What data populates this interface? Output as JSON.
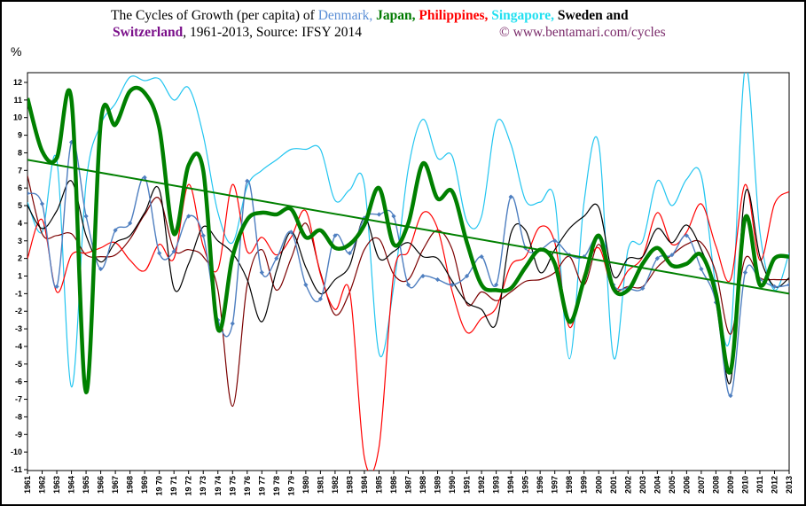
{
  "title": {
    "prefix": "The  Cycles of Growth (per capita) of ",
    "countries": [
      {
        "name": "Denmark",
        "sep": ", ",
        "color": "#5b8fd6",
        "bold": false
      },
      {
        "name": "Japan",
        "sep": ", ",
        "color": "#007a00",
        "bold": true
      },
      {
        "name": "Philippines",
        "sep": ", ",
        "color": "#ff0000",
        "bold": true
      },
      {
        "name": "Singapore",
        "sep": ", ",
        "color": "#22e0f0",
        "bold": true
      },
      {
        "name": "Sweden and",
        "sep": "",
        "color": "#000000",
        "bold": true
      }
    ],
    "line2_country": "Switzerland",
    "line2_color": "#7a0f8a",
    "line2_rest": ", 1961-2013, Source: IFSY 2014",
    "credit": "© www.bentamari.com/cycles"
  },
  "chart_data": {
    "type": "line",
    "ylabel": "%",
    "y_ticks": [
      "12",
      "11",
      "10",
      "9",
      "8",
      "7",
      "6",
      "5",
      "4",
      "3",
      "2",
      "1",
      "-1",
      "-2",
      "-3",
      "-4",
      "-5",
      "-6",
      "-7",
      "-8",
      "-9",
      "-10",
      "-11"
    ],
    "ylim": [
      -11,
      12
    ],
    "x": [
      1961,
      1962,
      1963,
      1964,
      1965,
      1966,
      1967,
      1968,
      1969,
      1970,
      1971,
      1972,
      1973,
      1974,
      1975,
      1976,
      1977,
      1978,
      1979,
      1980,
      1981,
      1982,
      1983,
      1984,
      1985,
      1986,
      1987,
      1988,
      1989,
      1990,
      1991,
      1992,
      1993,
      1994,
      1995,
      1996,
      1997,
      1998,
      1999,
      2000,
      2001,
      2002,
      2003,
      2004,
      2005,
      2006,
      2007,
      2008,
      2009,
      2010,
      2011,
      2012,
      2013
    ],
    "x_tick_labels": [
      "1961",
      "1962",
      "1963",
      "1964",
      "1965",
      "1966",
      "1967",
      "1968",
      "1969",
      "19 70",
      "19 71",
      "19 72",
      "19 73",
      "19 74",
      "19 75",
      "19 76",
      "19 77",
      "19 78",
      "19 79",
      "1980",
      "1981",
      "1982",
      "1983",
      "1984",
      "1985",
      "1986",
      "1987",
      "1988",
      "1989",
      "1990",
      "1991",
      "1992",
      "1993",
      "1994",
      "1995",
      "1996",
      "1997",
      "1998",
      "1999",
      "2000",
      "2001",
      "2002",
      "2003",
      "2004",
      "2005",
      "2006",
      "2007",
      "2008",
      "2009",
      "2010",
      "2011",
      "2012",
      "2013"
    ],
    "series": [
      {
        "name": "Denmark",
        "color": "#4f7fc0",
        "width": 1.4,
        "markers": true,
        "values": [
          5.7,
          5.1,
          -0.6,
          8.6,
          4.4,
          1.4,
          3.6,
          4.0,
          6.6,
          2.3,
          2.4,
          4.4,
          3.3,
          -2.5,
          -2.7,
          6.4,
          1.2,
          2.0,
          3.5,
          -0.5,
          -1.3,
          3.3,
          2.3,
          4.3,
          4.5,
          4.4,
          -0.5,
          1.0,
          -0.2,
          -0.5,
          1.0,
          2.1,
          -0.5,
          5.5,
          2.6,
          2.5,
          3.0,
          2.2,
          2.1,
          3.2,
          0.5,
          0.3,
          0.3,
          2.0,
          2.2,
          3.3,
          1.4,
          -1.5,
          -6.8,
          1.2,
          0.8,
          -0.6,
          -0.5
        ]
      },
      {
        "name": "Japan",
        "color": "#008000",
        "width": 4.5,
        "markers": false,
        "values": [
          11.1,
          8.1,
          7.7,
          11.0,
          -6.6,
          9.7,
          9.6,
          11.5,
          11.4,
          9.4,
          3.4,
          7.3,
          7.0,
          -3.0,
          2.1,
          4.2,
          4.6,
          4.5,
          4.8,
          3.2,
          3.6,
          2.6,
          2.8,
          3.9,
          6.0,
          2.8,
          4.0,
          7.4,
          5.4,
          5.8,
          2.9,
          0.5,
          -0.8,
          0.3,
          1.5,
          2.5,
          1.7,
          -2.6,
          -0.2,
          3.3,
          0.3,
          0.2,
          1.7,
          2.6,
          1.6,
          1.7,
          2.2,
          -1.0,
          -5.4,
          4.3,
          -0.5,
          2.0,
          2.1
        ]
      },
      {
        "name": "Philippines",
        "color": "#ff0000",
        "width": 1.2,
        "markers": false,
        "values": [
          2.0,
          4.2,
          0.1,
          2.2,
          2.3,
          2.6,
          2.9,
          1.9,
          1.3,
          2.8,
          2.0,
          6.2,
          2.7,
          1.4,
          6.2,
          2.4,
          3.2,
          2.2,
          3.2,
          4.7,
          1.1,
          -1.9,
          -0.9,
          -10.3,
          -9.7,
          1.1,
          2.4,
          4.6,
          3.7,
          -0.9,
          -3.2,
          -2.4,
          -1.8,
          1.6,
          2.1,
          3.8,
          2.9,
          -2.9,
          1.1,
          2.6,
          0.2,
          1.3,
          2.1,
          4.6,
          2.8,
          3.5,
          5.1,
          2.7,
          -0.2,
          6.2,
          1.9,
          5.1,
          5.8
        ]
      },
      {
        "name": "Singapore",
        "color": "#22c5f0",
        "width": 1.2,
        "markers": false,
        "values": [
          5.2,
          3.5,
          7.6,
          -6.3,
          6.3,
          9.6,
          10.8,
          12.3,
          12.1,
          12.2,
          11.0,
          11.7,
          9.0,
          4.6,
          2.9,
          6.1,
          7.0,
          7.6,
          8.2,
          8.2,
          8.2,
          5.3,
          5.9,
          6.2,
          -4.4,
          0.4,
          7.1,
          9.9,
          7.7,
          7.8,
          4.1,
          4.4,
          9.7,
          8.5,
          5.3,
          5.2,
          5.3,
          -4.7,
          5.2,
          8.5,
          -4.6,
          2.5,
          3.0,
          6.4,
          5.0,
          6.5,
          6.7,
          -0.6,
          -3.3,
          12.8,
          3.5,
          0.2,
          2.3
        ]
      },
      {
        "name": "Sweden",
        "color": "#000000",
        "width": 1.2,
        "markers": false,
        "values": [
          5.0,
          3.7,
          4.7,
          6.4,
          3.3,
          1.8,
          2.9,
          3.3,
          4.6,
          5.9,
          0.3,
          1.7,
          3.8,
          3.0,
          2.3,
          0.8,
          -2.6,
          1.3,
          3.5,
          1.5,
          0.0,
          0.8,
          1.6,
          4.3,
          2.0,
          2.4,
          2.9,
          2.1,
          2.0,
          0.7,
          -1.5,
          -1.9,
          -2.7,
          3.4,
          3.6,
          1.2,
          2.5,
          3.7,
          4.4,
          4.9,
          1.0,
          2.0,
          2.1,
          3.7,
          2.9,
          3.9,
          2.5,
          -0.9,
          -6.0,
          5.7,
          2.1,
          -0.6,
          0.9
        ]
      },
      {
        "name": "Switzerland",
        "color": "#7b0000",
        "width": 1.2,
        "markers": false,
        "values": [
          6.7,
          3.4,
          3.3,
          3.4,
          2.2,
          2.1,
          2.2,
          3.1,
          4.5,
          5.4,
          2.5,
          2.5,
          2.1,
          0.2,
          -7.4,
          -0.5,
          2.5,
          0.2,
          2.0,
          4.0,
          1.2,
          -2.2,
          0.1,
          2.5,
          3.1,
          1.1,
          0.8,
          2.5,
          3.6,
          2.5,
          -1.6,
          -0.9,
          -1.4,
          0.1,
          -0.3,
          -0.2,
          1.2,
          2.1,
          0.5,
          2.8,
          0.3,
          -0.6,
          -0.6,
          1.5,
          2.2,
          2.8,
          2.9,
          1.2,
          -3.3,
          2.0,
          0.9,
          -0.2,
          0.8
        ]
      }
    ],
    "trendline": {
      "name": "Japan trend",
      "color": "#008000",
      "start": [
        1961,
        7.6
      ],
      "end": [
        2013,
        -1.0
      ]
    }
  }
}
